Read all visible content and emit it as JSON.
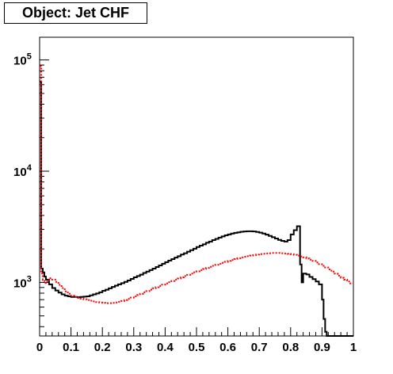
{
  "chart_data": {
    "type": "step",
    "title": "Object: Jet CHF",
    "xlabel": "",
    "ylabel": "",
    "xlim": [
      0,
      1
    ],
    "ylim": [
      330,
      160000
    ],
    "yscale": "log",
    "grid": false,
    "legend": "none",
    "x_tick_labels": [
      "0",
      "0.1",
      "0.2",
      "0.3",
      "0.4",
      "0.5",
      "0.6",
      "0.7",
      "0.8",
      "0.9",
      "1"
    ],
    "y_tick_labels": [
      {
        "base": "10",
        "exp": "3",
        "value": 1000
      },
      {
        "base": "10",
        "exp": "4",
        "value": 10000
      },
      {
        "base": "10",
        "exp": "5",
        "value": 100000
      }
    ],
    "series": [
      {
        "color": "#000000",
        "style": "solid",
        "points": [
          [
            0.0,
            64000
          ],
          [
            0.005,
            1330
          ],
          [
            0.01,
            1230
          ],
          [
            0.015,
            1130
          ],
          [
            0.02,
            1060
          ],
          [
            0.03,
            960
          ],
          [
            0.04,
            890
          ],
          [
            0.05,
            845
          ],
          [
            0.06,
            810
          ],
          [
            0.07,
            780
          ],
          [
            0.08,
            760
          ],
          [
            0.09,
            750
          ],
          [
            0.1,
            740
          ],
          [
            0.11,
            740
          ],
          [
            0.12,
            735
          ],
          [
            0.13,
            740
          ],
          [
            0.14,
            745
          ],
          [
            0.15,
            750
          ],
          [
            0.16,
            765
          ],
          [
            0.17,
            780
          ],
          [
            0.18,
            795
          ],
          [
            0.19,
            815
          ],
          [
            0.2,
            840
          ],
          [
            0.21,
            860
          ],
          [
            0.22,
            885
          ],
          [
            0.23,
            910
          ],
          [
            0.24,
            935
          ],
          [
            0.25,
            960
          ],
          [
            0.26,
            985
          ],
          [
            0.27,
            1010
          ],
          [
            0.28,
            1040
          ],
          [
            0.29,
            1075
          ],
          [
            0.3,
            1110
          ],
          [
            0.31,
            1140
          ],
          [
            0.32,
            1175
          ],
          [
            0.33,
            1215
          ],
          [
            0.34,
            1250
          ],
          [
            0.35,
            1290
          ],
          [
            0.36,
            1330
          ],
          [
            0.37,
            1375
          ],
          [
            0.38,
            1420
          ],
          [
            0.39,
            1470
          ],
          [
            0.4,
            1520
          ],
          [
            0.41,
            1570
          ],
          [
            0.42,
            1620
          ],
          [
            0.43,
            1670
          ],
          [
            0.44,
            1720
          ],
          [
            0.45,
            1780
          ],
          [
            0.46,
            1830
          ],
          [
            0.47,
            1890
          ],
          [
            0.48,
            1950
          ],
          [
            0.49,
            2010
          ],
          [
            0.5,
            2080
          ],
          [
            0.51,
            2140
          ],
          [
            0.52,
            2200
          ],
          [
            0.53,
            2270
          ],
          [
            0.54,
            2330
          ],
          [
            0.55,
            2400
          ],
          [
            0.56,
            2460
          ],
          [
            0.57,
            2530
          ],
          [
            0.58,
            2590
          ],
          [
            0.59,
            2650
          ],
          [
            0.6,
            2700
          ],
          [
            0.61,
            2750
          ],
          [
            0.62,
            2790
          ],
          [
            0.63,
            2820
          ],
          [
            0.64,
            2850
          ],
          [
            0.65,
            2870
          ],
          [
            0.66,
            2880
          ],
          [
            0.67,
            2880
          ],
          [
            0.68,
            2870
          ],
          [
            0.69,
            2840
          ],
          [
            0.7,
            2800
          ],
          [
            0.71,
            2750
          ],
          [
            0.72,
            2690
          ],
          [
            0.73,
            2620
          ],
          [
            0.74,
            2550
          ],
          [
            0.75,
            2480
          ],
          [
            0.76,
            2410
          ],
          [
            0.77,
            2360
          ],
          [
            0.78,
            2330
          ],
          [
            0.79,
            2400
          ],
          [
            0.8,
            2700
          ],
          [
            0.81,
            2950
          ],
          [
            0.82,
            3200
          ],
          [
            0.83,
            1450
          ],
          [
            0.835,
            1000
          ],
          [
            0.84,
            1200
          ],
          [
            0.85,
            1180
          ],
          [
            0.86,
            1120
          ],
          [
            0.87,
            1070
          ],
          [
            0.88,
            1020
          ],
          [
            0.89,
            960
          ],
          [
            0.9,
            700
          ],
          [
            0.905,
            470
          ],
          [
            0.91,
            360
          ],
          [
            0.915,
            330
          ],
          [
            0.92,
            330
          ],
          [
            0.93,
            330
          ],
          [
            0.94,
            330
          ],
          [
            0.95,
            330
          ],
          [
            0.96,
            330
          ],
          [
            0.97,
            330
          ],
          [
            0.98,
            330
          ],
          [
            0.99,
            330
          ]
        ]
      },
      {
        "color": "#ff0000",
        "style": "dotted",
        "points": [
          [
            0.0,
            88000
          ],
          [
            0.005,
            1200
          ],
          [
            0.01,
            1050
          ],
          [
            0.015,
            990
          ],
          [
            0.02,
            1020
          ],
          [
            0.03,
            1090
          ],
          [
            0.04,
            1060
          ],
          [
            0.05,
            1010
          ],
          [
            0.06,
            950
          ],
          [
            0.07,
            890
          ],
          [
            0.08,
            830
          ],
          [
            0.09,
            790
          ],
          [
            0.1,
            760
          ],
          [
            0.11,
            740
          ],
          [
            0.12,
            725
          ],
          [
            0.13,
            715
          ],
          [
            0.14,
            705
          ],
          [
            0.15,
            695
          ],
          [
            0.16,
            685
          ],
          [
            0.17,
            675
          ],
          [
            0.18,
            665
          ],
          [
            0.19,
            660
          ],
          [
            0.2,
            655
          ],
          [
            0.21,
            650
          ],
          [
            0.22,
            650
          ],
          [
            0.23,
            655
          ],
          [
            0.24,
            660
          ],
          [
            0.25,
            670
          ],
          [
            0.26,
            680
          ],
          [
            0.27,
            695
          ],
          [
            0.28,
            710
          ],
          [
            0.29,
            730
          ],
          [
            0.3,
            750
          ],
          [
            0.31,
            770
          ],
          [
            0.32,
            790
          ],
          [
            0.33,
            815
          ],
          [
            0.34,
            835
          ],
          [
            0.35,
            860
          ],
          [
            0.36,
            885
          ],
          [
            0.37,
            905
          ],
          [
            0.38,
            930
          ],
          [
            0.39,
            955
          ],
          [
            0.4,
            980
          ],
          [
            0.41,
            1005
          ],
          [
            0.42,
            1030
          ],
          [
            0.43,
            1060
          ],
          [
            0.44,
            1085
          ],
          [
            0.45,
            1110
          ],
          [
            0.46,
            1140
          ],
          [
            0.47,
            1170
          ],
          [
            0.48,
            1200
          ],
          [
            0.49,
            1230
          ],
          [
            0.5,
            1260
          ],
          [
            0.51,
            1290
          ],
          [
            0.52,
            1320
          ],
          [
            0.53,
            1350
          ],
          [
            0.54,
            1380
          ],
          [
            0.55,
            1410
          ],
          [
            0.56,
            1440
          ],
          [
            0.57,
            1470
          ],
          [
            0.58,
            1500
          ],
          [
            0.59,
            1530
          ],
          [
            0.6,
            1560
          ],
          [
            0.61,
            1590
          ],
          [
            0.62,
            1620
          ],
          [
            0.63,
            1650
          ],
          [
            0.64,
            1680
          ],
          [
            0.65,
            1700
          ],
          [
            0.66,
            1720
          ],
          [
            0.67,
            1740
          ],
          [
            0.68,
            1760
          ],
          [
            0.69,
            1780
          ],
          [
            0.7,
            1800
          ],
          [
            0.71,
            1810
          ],
          [
            0.72,
            1820
          ],
          [
            0.73,
            1830
          ],
          [
            0.74,
            1840
          ],
          [
            0.75,
            1840
          ],
          [
            0.76,
            1840
          ],
          [
            0.77,
            1830
          ],
          [
            0.78,
            1820
          ],
          [
            0.79,
            1810
          ],
          [
            0.8,
            1790
          ],
          [
            0.81,
            1770
          ],
          [
            0.82,
            1740
          ],
          [
            0.83,
            1710
          ],
          [
            0.84,
            1680
          ],
          [
            0.85,
            1640
          ],
          [
            0.86,
            1600
          ],
          [
            0.87,
            1560
          ],
          [
            0.88,
            1510
          ],
          [
            0.89,
            1460
          ],
          [
            0.9,
            1410
          ],
          [
            0.91,
            1360
          ],
          [
            0.92,
            1310
          ],
          [
            0.93,
            1250
          ],
          [
            0.94,
            1200
          ],
          [
            0.95,
            1150
          ],
          [
            0.96,
            1100
          ],
          [
            0.97,
            1060
          ],
          [
            0.98,
            1020
          ],
          [
            0.99,
            980
          ]
        ]
      }
    ]
  }
}
